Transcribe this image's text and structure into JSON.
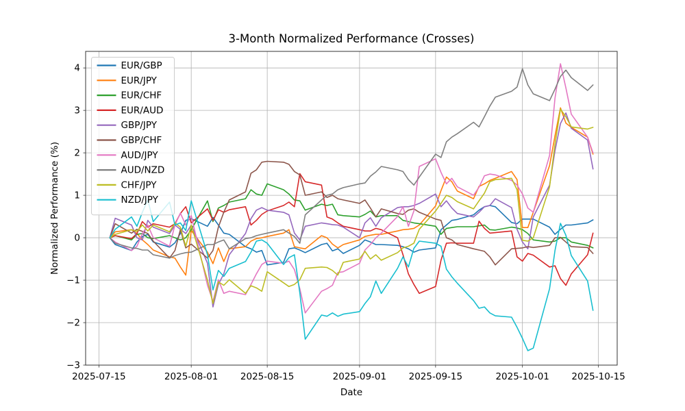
{
  "title": "3-Month Normalized Performance (Crosses)",
  "xlabel": "Date",
  "ylabel": "Normalized Performance (%)",
  "chart_data": {
    "type": "line",
    "title": "3-Month Normalized Performance (Crosses)",
    "xlabel": "Date",
    "ylabel": "Normalized Performance (%)",
    "grid": true,
    "legend_position": "upper left",
    "ylim": [
      -3.0,
      4.39
    ],
    "x_tick_labels": [
      "2025-07-15",
      "2025-08-01",
      "2025-08-15",
      "2025-09-01",
      "2025-09-15",
      "2025-10-01",
      "2025-10-15"
    ],
    "y_ticks": [
      {
        "v": -3,
        "label": "−3"
      },
      {
        "v": -2,
        "label": "−2"
      },
      {
        "v": -1,
        "label": "−1"
      },
      {
        "v": 0,
        "label": "0"
      },
      {
        "v": 1,
        "label": "1"
      },
      {
        "v": 2,
        "label": "2"
      },
      {
        "v": 3,
        "label": "3"
      },
      {
        "v": 4,
        "label": "4"
      }
    ],
    "x": [
      "2025-07-17",
      "2025-07-18",
      "2025-07-21",
      "2025-07-22",
      "2025-07-23",
      "2025-07-24",
      "2025-07-25",
      "2025-07-28",
      "2025-07-29",
      "2025-07-30",
      "2025-07-31",
      "2025-08-01",
      "2025-08-04",
      "2025-08-05",
      "2025-08-06",
      "2025-08-07",
      "2025-08-08",
      "2025-08-11",
      "2025-08-12",
      "2025-08-13",
      "2025-08-14",
      "2025-08-15",
      "2025-08-18",
      "2025-08-19",
      "2025-08-20",
      "2025-08-21",
      "2025-08-22",
      "2025-08-25",
      "2025-08-26",
      "2025-08-27",
      "2025-08-28",
      "2025-08-29",
      "2025-09-01",
      "2025-09-02",
      "2025-09-03",
      "2025-09-04",
      "2025-09-05",
      "2025-09-08",
      "2025-09-09",
      "2025-09-10",
      "2025-09-11",
      "2025-09-12",
      "2025-09-15",
      "2025-09-16",
      "2025-09-17",
      "2025-09-18",
      "2025-09-19",
      "2025-09-22",
      "2025-09-23",
      "2025-09-24",
      "2025-09-25",
      "2025-09-26",
      "2025-09-29",
      "2025-09-30",
      "2025-10-01",
      "2025-10-02",
      "2025-10-03",
      "2025-10-06",
      "2025-10-07",
      "2025-10-08",
      "2025-10-09",
      "2025-10-10",
      "2025-10-13",
      "2025-10-14"
    ],
    "series": [
      {
        "name": "EUR/GBP",
        "color": "#1f77b4",
        "values": [
          0,
          -0.16,
          -0.3,
          -0.1,
          0.03,
          0.08,
          -0.1,
          -0.22,
          -0.12,
          0.1,
          0.41,
          0.45,
          0.27,
          0.48,
          0.3,
          0.11,
          0.08,
          -0.21,
          -0.26,
          -0.34,
          -0.3,
          -0.64,
          -0.58,
          -0.26,
          -0.24,
          -0.29,
          -0.35,
          -0.16,
          -0.13,
          -0.31,
          -0.26,
          -0.37,
          -0.18,
          -0.05,
          -0.1,
          -0.16,
          -0.16,
          -0.18,
          -0.21,
          -0.26,
          -0.34,
          -0.29,
          -0.24,
          0.19,
          0.3,
          0.41,
          0.43,
          0.54,
          0.65,
          0.73,
          0.76,
          0.73,
          0.36,
          0.33,
          0.44,
          0.44,
          0.44,
          0.25,
          0.08,
          0.2,
          0.3,
          0.3,
          0.35,
          0.42
        ]
      },
      {
        "name": "EUR/JPY",
        "color": "#ff7f0e",
        "values": [
          0,
          0.14,
          0.19,
          0.1,
          -0.05,
          -0.16,
          -0.29,
          -0.45,
          -0.48,
          -0.69,
          -0.88,
          0.17,
          -0.34,
          -0.61,
          -0.24,
          -0.56,
          -0.26,
          -0.21,
          -0.08,
          -0.02,
          0.0,
          0.03,
          0.11,
          0.19,
          -0.21,
          -0.24,
          -0.26,
          0.05,
          0.0,
          -0.15,
          -0.24,
          -0.16,
          -0.05,
          0.03,
          0.06,
          0.08,
          0.08,
          0.16,
          0.19,
          0.2,
          0.22,
          0.3,
          0.75,
          1.11,
          1.43,
          1.32,
          1.1,
          0.92,
          1.21,
          1.27,
          1.35,
          1.4,
          1.56,
          1.37,
          0.24,
          0.24,
          0.6,
          1.7,
          2.4,
          3.06,
          2.7,
          2.6,
          2.37,
          1.97
        ]
      },
      {
        "name": "EUR/CHF",
        "color": "#2ca02c",
        "values": [
          0,
          0.05,
          -0.05,
          0.08,
          0.1,
          0.0,
          -0.02,
          0.05,
          0.0,
          -0.05,
          0.0,
          0.19,
          0.87,
          0.38,
          0.7,
          0.76,
          0.84,
          0.92,
          1.13,
          1.03,
          1.0,
          1.27,
          1.13,
          1.03,
          0.89,
          0.87,
          0.65,
          0.79,
          0.76,
          0.79,
          0.54,
          0.52,
          0.49,
          0.55,
          0.63,
          0.49,
          0.52,
          0.52,
          0.41,
          0.38,
          0.35,
          0.33,
          0.27,
          0.08,
          0.22,
          0.24,
          0.26,
          0.26,
          0.28,
          0.3,
          0.19,
          0.18,
          0.25,
          0.23,
          0.19,
          0.1,
          -0.05,
          -0.1,
          -0.08,
          0.0,
          0.0,
          -0.1,
          -0.18,
          -0.24
        ]
      },
      {
        "name": "EUR/AUD",
        "color": "#d62728",
        "values": [
          0,
          0.05,
          -0.02,
          0.1,
          0.38,
          0.25,
          0.33,
          0.25,
          0.33,
          0.57,
          0.73,
          0.35,
          0.68,
          0.41,
          0.66,
          0.6,
          0.66,
          0.73,
          0.3,
          0.41,
          0.55,
          0.63,
          0.76,
          0.84,
          0.73,
          1.51,
          1.32,
          1.24,
          0.49,
          0.44,
          0.35,
          0.27,
          0.19,
          0.16,
          0.16,
          0.22,
          0.19,
          0.0,
          -0.4,
          -0.85,
          -1.1,
          -1.31,
          -1.15,
          -0.53,
          -0.13,
          -0.12,
          -0.13,
          -0.13,
          0.39,
          0.22,
          0.11,
          0.12,
          0.16,
          -0.45,
          -0.55,
          -0.37,
          -0.41,
          -0.69,
          -0.66,
          -0.96,
          -1.12,
          -0.85,
          -0.4,
          0.11
        ]
      },
      {
        "name": "GBP/JPY",
        "color": "#9467bd",
        "values": [
          0,
          0.46,
          0.3,
          0.0,
          -0.05,
          0.41,
          0.25,
          0.1,
          0.3,
          0.2,
          0.1,
          0.3,
          -0.6,
          -1.63,
          -1.1,
          -0.85,
          -0.4,
          0.1,
          0.45,
          0.65,
          0.71,
          0.65,
          0.6,
          0.54,
          0.11,
          -0.05,
          0.27,
          0.35,
          0.33,
          0.31,
          0.3,
          0.25,
          0.0,
          0.35,
          0.47,
          0.27,
          0.47,
          0.71,
          0.73,
          0.73,
          0.76,
          0.81,
          1.03,
          0.73,
          0.87,
          0.7,
          0.57,
          0.49,
          0.6,
          0.73,
          0.76,
          0.92,
          0.71,
          0.2,
          -0.1,
          -0.26,
          0.49,
          1.24,
          2.05,
          2.69,
          2.94,
          2.58,
          2.3,
          1.62
        ]
      },
      {
        "name": "GBP/CHF",
        "color": "#8c564b",
        "values": [
          0,
          0.33,
          0.11,
          0.2,
          0.15,
          0.1,
          -0.08,
          -0.48,
          -0.3,
          0.19,
          -0.24,
          -0.15,
          -0.48,
          -0.3,
          0.25,
          0.6,
          0.89,
          1.08,
          1.52,
          1.6,
          1.78,
          1.8,
          1.78,
          1.73,
          1.56,
          1.48,
          1.0,
          1.08,
          0.95,
          1.0,
          0.92,
          0.89,
          0.81,
          0.89,
          0.7,
          0.49,
          0.68,
          0.57,
          0.55,
          0.65,
          0.68,
          0.6,
          0.44,
          0.41,
          0.0,
          -0.05,
          -0.16,
          -0.26,
          -0.29,
          -0.32,
          -0.45,
          -0.64,
          -0.26,
          -0.25,
          -0.24,
          -0.21,
          -0.23,
          -0.18,
          0.0,
          0.01,
          -0.1,
          -0.21,
          -0.23,
          -0.37
        ]
      },
      {
        "name": "AUD/JPY",
        "color": "#e377c2",
        "values": [
          0,
          -0.1,
          -0.3,
          -0.2,
          0.1,
          0.3,
          0.0,
          -0.2,
          0.3,
          0.58,
          0.3,
          0.52,
          -1.12,
          -1.5,
          -0.99,
          -1.31,
          -1.26,
          -1.34,
          -1.1,
          -0.85,
          -0.63,
          -0.55,
          -0.6,
          -0.55,
          -0.75,
          -1.2,
          -1.77,
          -1.26,
          -1.2,
          -1.12,
          -0.82,
          -0.8,
          -0.6,
          -0.29,
          -0.16,
          0.0,
          0.11,
          0.5,
          0.73,
          0.27,
          0.63,
          1.68,
          1.86,
          1.54,
          1.27,
          1.4,
          1.2,
          1.0,
          1.19,
          1.46,
          1.5,
          1.48,
          1.35,
          1.24,
          1.03,
          0.7,
          0.6,
          1.94,
          3.29,
          4.1,
          3.53,
          2.91,
          2.37,
          2.0
        ]
      },
      {
        "name": "AUD/NZD",
        "color": "#7f7f7f",
        "values": [
          0,
          -0.13,
          -0.24,
          -0.25,
          -0.29,
          -0.29,
          -0.4,
          -0.48,
          -0.42,
          -0.38,
          -0.35,
          -0.34,
          -0.16,
          -0.16,
          -0.1,
          -0.05,
          -0.26,
          -0.02,
          0.0,
          0.05,
          0.08,
          0.11,
          0.19,
          0.11,
          0.03,
          -0.13,
          0.54,
          0.89,
          1.0,
          1.03,
          1.13,
          1.18,
          1.27,
          1.29,
          1.45,
          1.55,
          1.68,
          1.6,
          1.56,
          1.37,
          1.24,
          1.43,
          1.97,
          1.89,
          2.26,
          2.37,
          2.45,
          2.72,
          2.61,
          2.85,
          3.1,
          3.31,
          3.45,
          3.55,
          3.98,
          3.6,
          3.39,
          3.23,
          3.5,
          3.8,
          3.95,
          3.77,
          3.47,
          3.6
        ]
      },
      {
        "name": "CHF/JPY",
        "color": "#bcbd22",
        "values": [
          0,
          0.08,
          0.19,
          0.15,
          0.3,
          0.16,
          0.3,
          0.14,
          0.35,
          0.25,
          -0.2,
          0.3,
          -1.0,
          -1.55,
          -1.04,
          -1.12,
          -0.99,
          -1.31,
          -1.13,
          -1.18,
          -1.26,
          -0.8,
          -1.06,
          -1.15,
          -1.1,
          -0.99,
          -0.72,
          -0.69,
          -0.7,
          -0.77,
          -0.88,
          -0.58,
          -0.5,
          -0.32,
          -0.5,
          -0.4,
          -0.53,
          -0.35,
          -0.24,
          -0.2,
          -0.13,
          0.2,
          0.63,
          0.81,
          1.0,
          0.95,
          0.85,
          0.68,
          0.87,
          1.05,
          1.32,
          1.37,
          1.4,
          1.13,
          -0.06,
          -0.08,
          0.0,
          1.2,
          2.2,
          3.03,
          2.85,
          2.61,
          2.56,
          2.6
        ]
      },
      {
        "name": "NZD/JPY",
        "color": "#17becf",
        "values": [
          0,
          0.2,
          0.49,
          0.27,
          0.6,
          0.89,
          0.38,
          0.84,
          0.3,
          0.35,
          0.17,
          0.87,
          -0.4,
          -1.23,
          -0.77,
          -0.91,
          -0.72,
          -0.56,
          -0.34,
          -0.08,
          -0.05,
          -0.13,
          -0.63,
          -0.47,
          -0.4,
          -1.3,
          -2.39,
          -1.82,
          -1.85,
          -1.77,
          -1.85,
          -1.8,
          -1.74,
          -1.55,
          -1.39,
          -1.02,
          -1.31,
          -0.72,
          -0.45,
          -0.69,
          -0.25,
          -0.08,
          -0.13,
          -0.2,
          -0.74,
          -0.92,
          -1.07,
          -1.48,
          -1.66,
          -1.63,
          -1.77,
          -1.84,
          -1.87,
          -2.11,
          -2.37,
          -2.66,
          -2.6,
          -1.2,
          -0.3,
          0.34,
          0.06,
          -0.42,
          -1.02,
          -1.71
        ]
      }
    ]
  },
  "style": {
    "grid_color": "#b0b0b0",
    "frame_color": "#333333",
    "legend_border_color": "#cccccc",
    "background": "#ffffff"
  }
}
